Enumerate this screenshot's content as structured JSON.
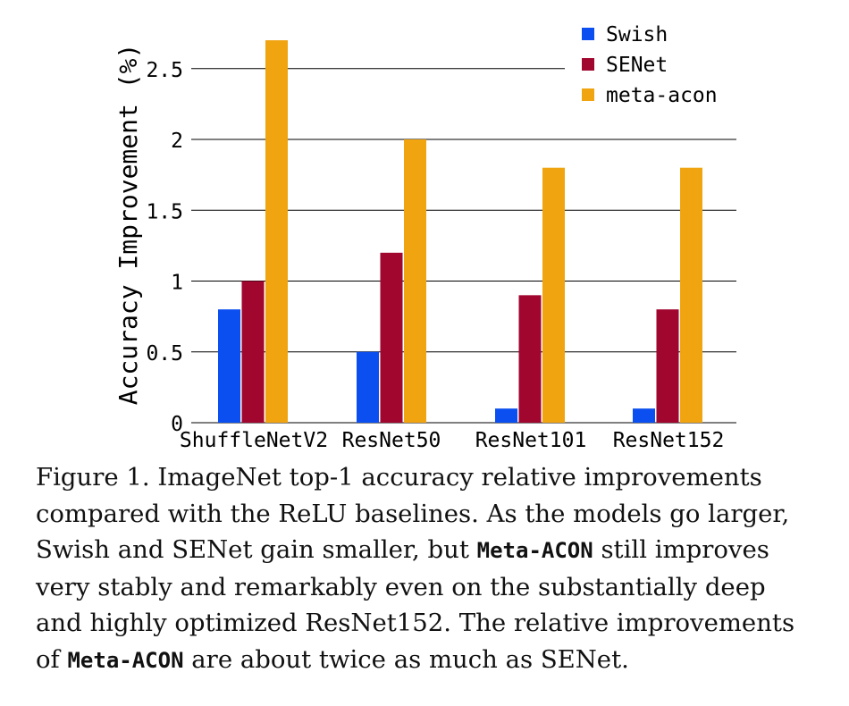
{
  "chart_data": {
    "type": "bar",
    "categories": [
      "ShuffleNetV2",
      "ResNet50",
      "ResNet101",
      "ResNet152"
    ],
    "series": [
      {
        "name": "Swish",
        "color": "#0b4ff0",
        "values": [
          0.8,
          0.5,
          0.1,
          0.1
        ]
      },
      {
        "name": "SENet",
        "color": "#a0062e",
        "values": [
          1.0,
          1.2,
          0.9,
          0.8
        ]
      },
      {
        "name": "meta-acon",
        "color": "#f0a410",
        "values": [
          2.7,
          2.0,
          1.8,
          1.8
        ]
      }
    ],
    "ylabel": "Accuracy Improvement (%)",
    "xlabel": "",
    "title": "",
    "ylim": [
      0,
      2.9
    ],
    "yticks": [
      0,
      0.5,
      1,
      1.5,
      2,
      2.5
    ],
    "ytick_labels": [
      "0",
      "0.5",
      "1",
      "1.5",
      "2",
      "2.5"
    ],
    "grid": "horizontal",
    "legend_position": "top-right"
  },
  "caption": {
    "line1": "Figure 1. ImageNet top-1 accuracy relative improvements",
    "line2": "compared with the ReLU baselines.  As the models go larger,",
    "line3_a": "Swish and SENet gain smaller, but ",
    "line3_code": "Meta-ACON",
    "line3_b": " still improves",
    "line4": "very stably and remarkably even on the substantially deep",
    "line5": "and highly optimized ResNet152.  The relative improvements",
    "line6_a": "of ",
    "line6_code": "Meta-ACON",
    "line6_b": " are about twice as much as SENet."
  }
}
